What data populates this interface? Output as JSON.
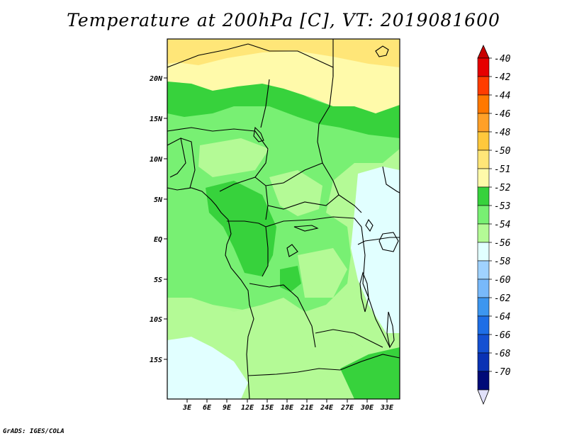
{
  "title": "Temperature at 200hPa [C], VT: 2019081600",
  "credit": "GrADS: IGES/COLA",
  "map": {
    "lat_ticks": [
      "20N",
      "15N",
      "10N",
      "5N",
      "EQ",
      "5S",
      "10S",
      "15S"
    ],
    "lon_ticks": [
      "3E",
      "6E",
      "9E",
      "12E",
      "15E",
      "18E",
      "21E",
      "24E",
      "27E",
      "30E",
      "33E"
    ],
    "lon_range": [
      0,
      35
    ],
    "lat_range": [
      -20,
      24.5
    ]
  },
  "colorbar": {
    "levels": [
      {
        "label": "-40",
        "color": "#e60000"
      },
      {
        "label": "-42",
        "color": "#ff3c00"
      },
      {
        "label": "-44",
        "color": "#ff7800"
      },
      {
        "label": "-46",
        "color": "#ffa028"
      },
      {
        "label": "-48",
        "color": "#ffc83c"
      },
      {
        "label": "-50",
        "color": "#ffe678"
      },
      {
        "label": "-51",
        "color": "#fffaaa"
      },
      {
        "label": "-52",
        "color": "#37d23c"
      },
      {
        "label": "-53",
        "color": "#78f073"
      },
      {
        "label": "-54",
        "color": "#b4fa96"
      },
      {
        "label": "-56",
        "color": "#e1ffff"
      },
      {
        "label": "-58",
        "color": "#a0d2ff"
      },
      {
        "label": "-60",
        "color": "#78b9fa"
      },
      {
        "label": "-62",
        "color": "#3c96f0"
      },
      {
        "label": "-64",
        "color": "#1e6ee6"
      },
      {
        "label": "-66",
        "color": "#1450d2"
      },
      {
        "label": "-68",
        "color": "#0a32b4"
      },
      {
        "label": "-70",
        "color": "#000a78"
      }
    ],
    "top_color": "#c80000",
    "bottom_color": "#e1e1fa"
  }
}
